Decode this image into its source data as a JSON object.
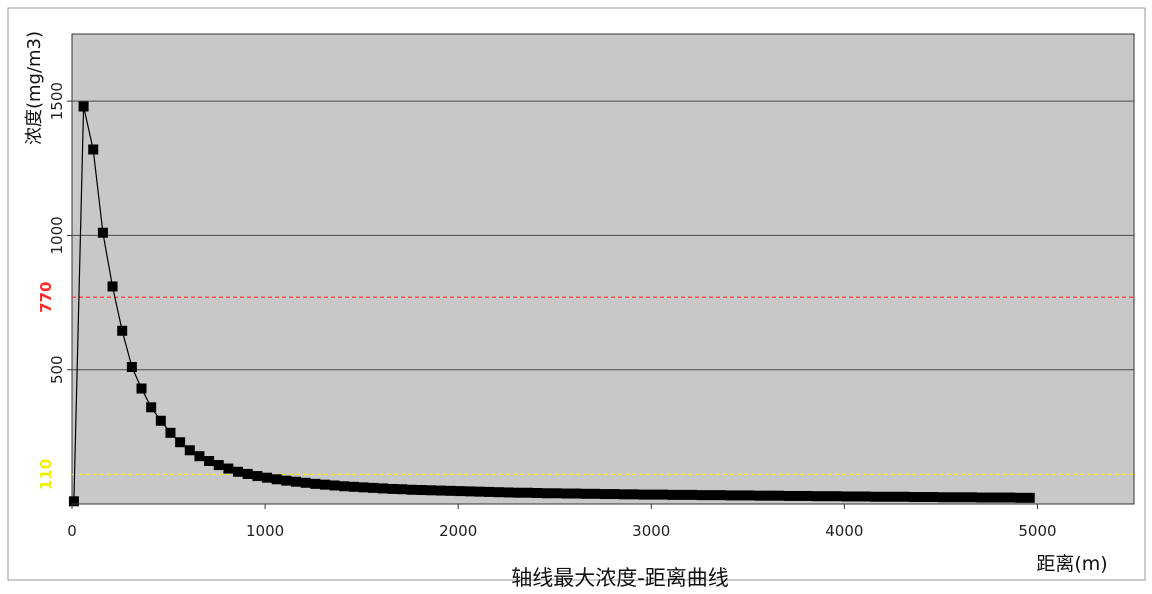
{
  "chart_data": {
    "type": "scatter",
    "title": "轴线最大浓度-距离曲线",
    "xlabel": "距离(m)",
    "ylabel": "浓度(mg/m3)",
    "xlim": [
      0,
      5500
    ],
    "ylim": [
      0,
      1750
    ],
    "xticks": [
      0,
      1000,
      2000,
      3000,
      4000,
      5000
    ],
    "yticks": [
      500,
      1000,
      1500
    ],
    "grid": "horizontal",
    "background": "#c8c8c8",
    "reference_lines": [
      {
        "label": "770",
        "value": 770,
        "color": "#ff2a2a"
      },
      {
        "label": "110",
        "value": 110,
        "color": "#f0f000"
      }
    ],
    "series": [
      {
        "marker": "square",
        "color": "#000000",
        "points": [
          [
            10,
            10
          ],
          [
            60,
            1480
          ],
          [
            110,
            1320
          ],
          [
            160,
            1010
          ],
          [
            210,
            810
          ],
          [
            260,
            645
          ],
          [
            310,
            510
          ],
          [
            360,
            430
          ],
          [
            410,
            360
          ],
          [
            460,
            310
          ],
          [
            510,
            265
          ],
          [
            560,
            230
          ],
          [
            610,
            200
          ],
          [
            660,
            178
          ],
          [
            710,
            160
          ],
          [
            760,
            145
          ],
          [
            810,
            132
          ],
          [
            860,
            120
          ],
          [
            910,
            112
          ],
          [
            960,
            104
          ],
          [
            1010,
            98
          ],
          [
            1060,
            92
          ],
          [
            1110,
            87
          ],
          [
            1160,
            83
          ],
          [
            1210,
            79
          ],
          [
            1260,
            75
          ],
          [
            1310,
            72
          ],
          [
            1360,
            69
          ],
          [
            1410,
            66
          ],
          [
            1460,
            64
          ],
          [
            1510,
            62
          ],
          [
            1560,
            60
          ],
          [
            1610,
            58
          ],
          [
            1660,
            56
          ],
          [
            1710,
            55
          ],
          [
            1760,
            53
          ],
          [
            1810,
            52
          ],
          [
            1860,
            51
          ],
          [
            1910,
            50
          ],
          [
            1960,
            49
          ],
          [
            2010,
            48
          ],
          [
            2060,
            47
          ],
          [
            2110,
            46
          ],
          [
            2160,
            45
          ],
          [
            2210,
            44
          ],
          [
            2260,
            43
          ],
          [
            2310,
            42
          ],
          [
            2360,
            42
          ],
          [
            2410,
            41
          ],
          [
            2460,
            40
          ],
          [
            2510,
            40
          ],
          [
            2560,
            39
          ],
          [
            2610,
            39
          ],
          [
            2660,
            38
          ],
          [
            2710,
            38
          ],
          [
            2760,
            37
          ],
          [
            2810,
            37
          ],
          [
            2860,
            36
          ],
          [
            2910,
            36
          ],
          [
            2960,
            35
          ],
          [
            3010,
            35
          ],
          [
            3060,
            35
          ],
          [
            3110,
            34
          ],
          [
            3160,
            34
          ],
          [
            3210,
            34
          ],
          [
            3260,
            33
          ],
          [
            3310,
            33
          ],
          [
            3360,
            33
          ],
          [
            3410,
            32
          ],
          [
            3460,
            32
          ],
          [
            3510,
            32
          ],
          [
            3560,
            31
          ],
          [
            3610,
            31
          ],
          [
            3660,
            31
          ],
          [
            3710,
            30
          ],
          [
            3760,
            30
          ],
          [
            3810,
            30
          ],
          [
            3860,
            29
          ],
          [
            3910,
            29
          ],
          [
            3960,
            29
          ],
          [
            4010,
            28
          ],
          [
            4060,
            28
          ],
          [
            4110,
            28
          ],
          [
            4160,
            27
          ],
          [
            4210,
            27
          ],
          [
            4260,
            27
          ],
          [
            4310,
            27
          ],
          [
            4360,
            26
          ],
          [
            4410,
            26
          ],
          [
            4460,
            26
          ],
          [
            4510,
            25
          ],
          [
            4560,
            25
          ],
          [
            4610,
            25
          ],
          [
            4660,
            25
          ],
          [
            4710,
            24
          ],
          [
            4760,
            24
          ],
          [
            4810,
            24
          ],
          [
            4860,
            24
          ],
          [
            4910,
            23
          ],
          [
            4960,
            23
          ]
        ]
      }
    ]
  }
}
